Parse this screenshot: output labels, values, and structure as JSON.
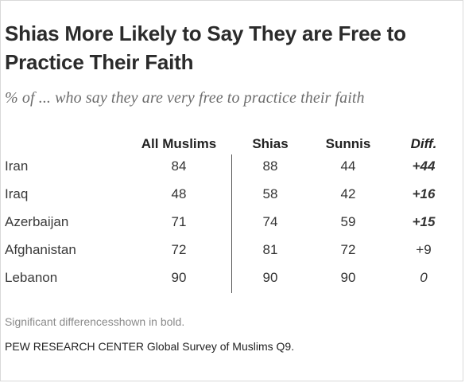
{
  "title": "Shias More Likely to Say They are Free to Practice Their Faith",
  "subtitle": "% of ... who say they are very free to practice their faith",
  "note": "Significant differencesshown in bold.",
  "source": "PEW RESEARCH CENTER Global Survey of Muslims Q9.",
  "chart_data": {
    "type": "table",
    "title": "Shias More Likely to Say They are Free to Practice Their Faith",
    "subtitle": "% of ... who say they are very free to practice their faith",
    "columns": [
      "",
      "All Muslims",
      "Shias",
      "Sunnis",
      "Diff."
    ],
    "rows": [
      {
        "country": "Iran",
        "all_muslims": 84,
        "shias": 88,
        "sunnis": 44,
        "diff": "+44",
        "significant": true
      },
      {
        "country": "Iraq",
        "all_muslims": 48,
        "shias": 58,
        "sunnis": 42,
        "diff": "+16",
        "significant": true
      },
      {
        "country": "Azerbaijan",
        "all_muslims": 71,
        "shias": 74,
        "sunnis": 59,
        "diff": "+15",
        "significant": true
      },
      {
        "country": "Afghanistan",
        "all_muslims": 72,
        "shias": 81,
        "sunnis": 72,
        "diff": "+9",
        "significant": false
      },
      {
        "country": "Lebanon",
        "all_muslims": 90,
        "shias": 90,
        "sunnis": 90,
        "diff": "0",
        "significant": false
      }
    ]
  }
}
